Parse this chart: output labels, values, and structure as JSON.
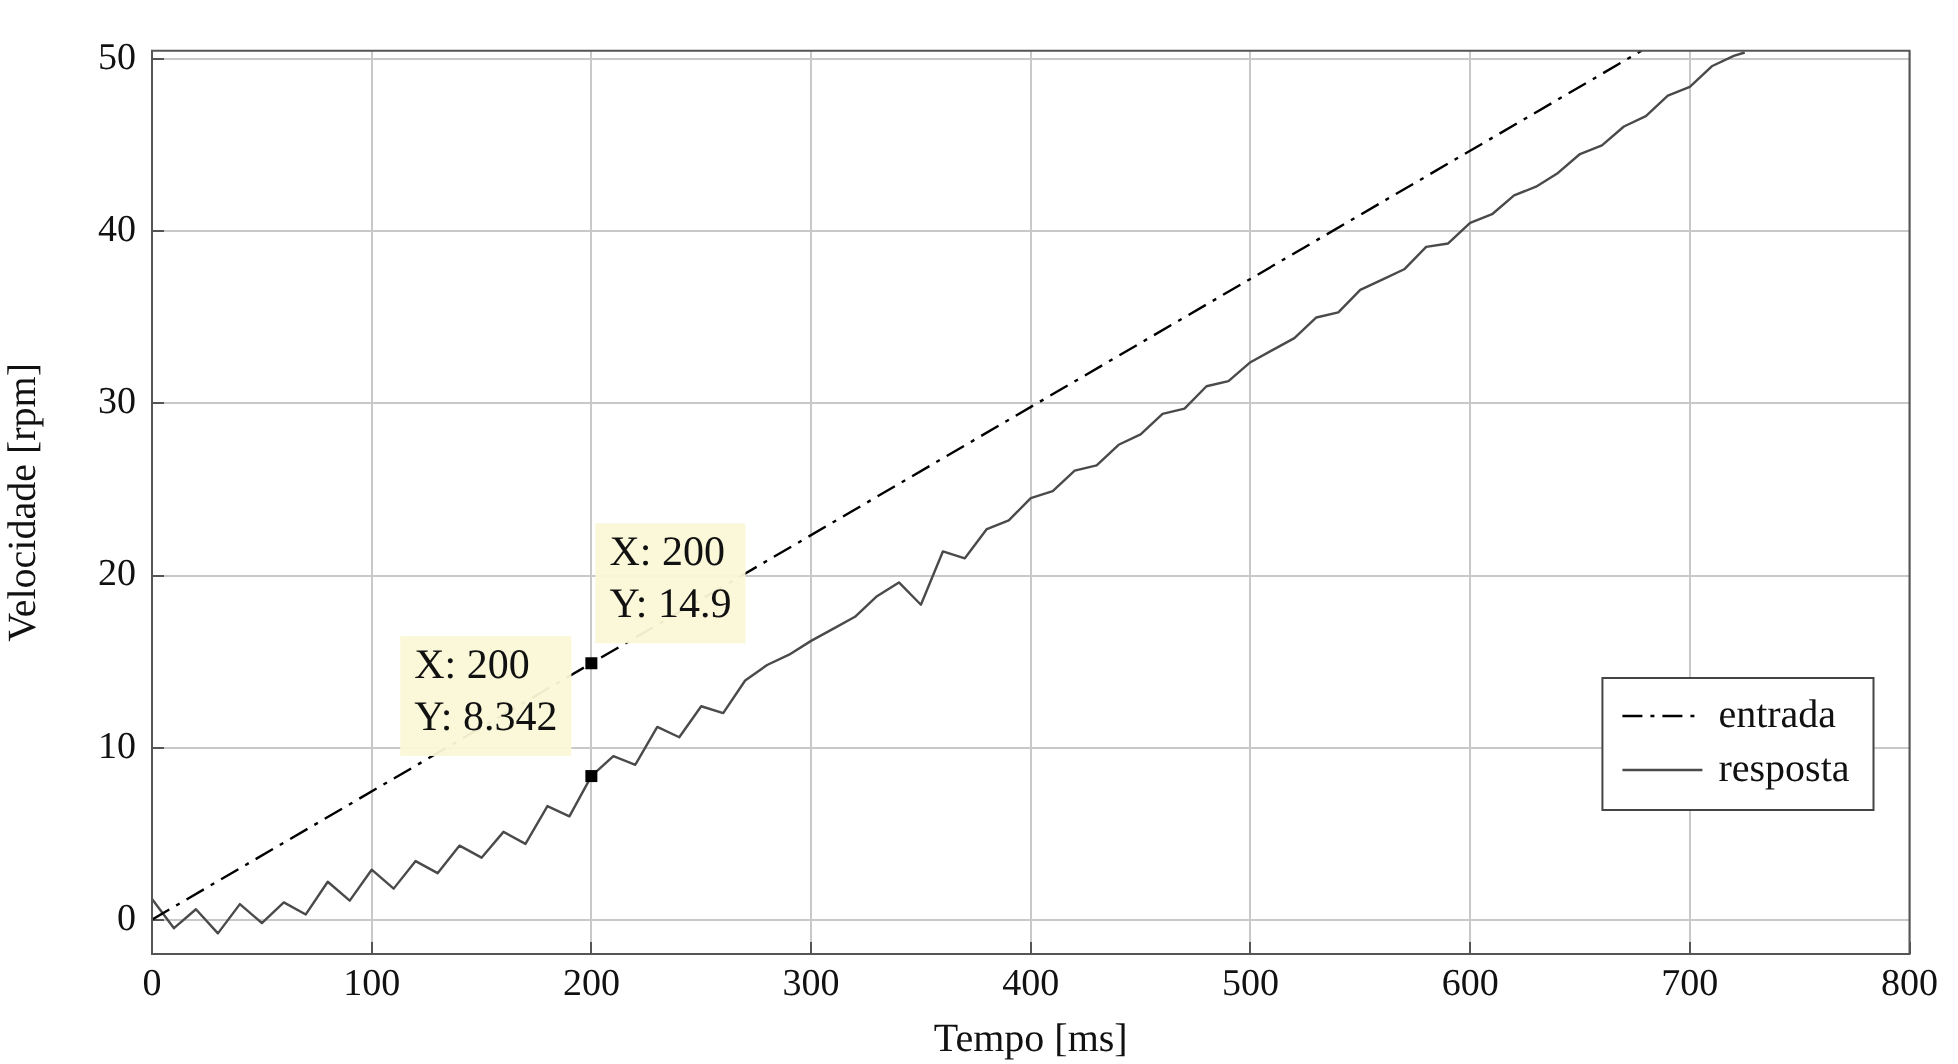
{
  "chart_data": {
    "type": "line",
    "xlabel": "Tempo [ms]",
    "ylabel": "Velocidade [rpm]",
    "xlim": [
      0,
      800
    ],
    "xticks": [
      0,
      100,
      200,
      300,
      400,
      500,
      600,
      700,
      800
    ],
    "ylim": [
      -2,
      50.5
    ],
    "yticks": [
      0,
      10,
      20,
      30,
      40,
      50
    ],
    "grid": true,
    "legend": "bottom right",
    "marker": "none",
    "series": [
      {
        "name": "entrada",
        "color": "#000000",
        "line_style": "dashed",
        "x": [
          0,
          200,
          678
        ],
        "values": [
          0,
          14.9,
          50.5
        ]
      },
      {
        "name": "resposta",
        "color": "#4a4a4a",
        "line_style": "solid",
        "x": [
          0,
          10,
          20,
          30,
          40,
          50,
          60,
          70,
          80,
          90,
          100,
          110,
          120,
          130,
          140,
          150,
          160,
          170,
          180,
          190,
          200,
          210,
          220,
          230,
          240,
          250,
          260,
          270,
          280,
          290,
          300,
          310,
          320,
          330,
          340,
          350,
          360,
          370,
          380,
          390,
          400,
          410,
          420,
          430,
          440,
          450,
          460,
          470,
          480,
          490,
          500,
          510,
          520,
          530,
          540,
          550,
          560,
          570,
          580,
          590,
          600,
          610,
          620,
          630,
          640,
          650,
          660,
          670,
          680,
          690,
          700,
          710,
          720,
          725
        ],
        "values": [
          1.2,
          -0.5,
          0.6,
          -0.8,
          0.9,
          -0.2,
          1.0,
          0.3,
          2.2,
          1.1,
          2.9,
          1.8,
          3.4,
          2.7,
          4.3,
          3.6,
          5.1,
          4.4,
          6.6,
          6.0,
          8.342,
          9.5,
          9.0,
          11.2,
          10.6,
          12.4,
          12.0,
          13.9,
          14.8,
          15.4,
          16.2,
          16.9,
          17.6,
          18.8,
          19.6,
          18.3,
          21.4,
          21.0,
          22.7,
          23.2,
          24.5,
          24.9,
          26.1,
          26.4,
          27.6,
          28.2,
          29.4,
          29.7,
          31.0,
          31.3,
          32.4,
          33.1,
          33.8,
          35.0,
          35.3,
          36.6,
          37.2,
          37.8,
          39.1,
          39.3,
          40.5,
          41.0,
          42.1,
          42.6,
          43.4,
          44.5,
          45.0,
          46.1,
          46.7,
          47.9,
          48.4,
          49.6,
          50.2,
          50.4
        ]
      }
    ],
    "annotations": [
      {
        "text": "X: 200\nY: 14.9",
        "x": 200,
        "y": 14.9
      },
      {
        "text": "X: 200\nY: 8.342",
        "x": 200,
        "y": 8.342
      }
    ]
  }
}
